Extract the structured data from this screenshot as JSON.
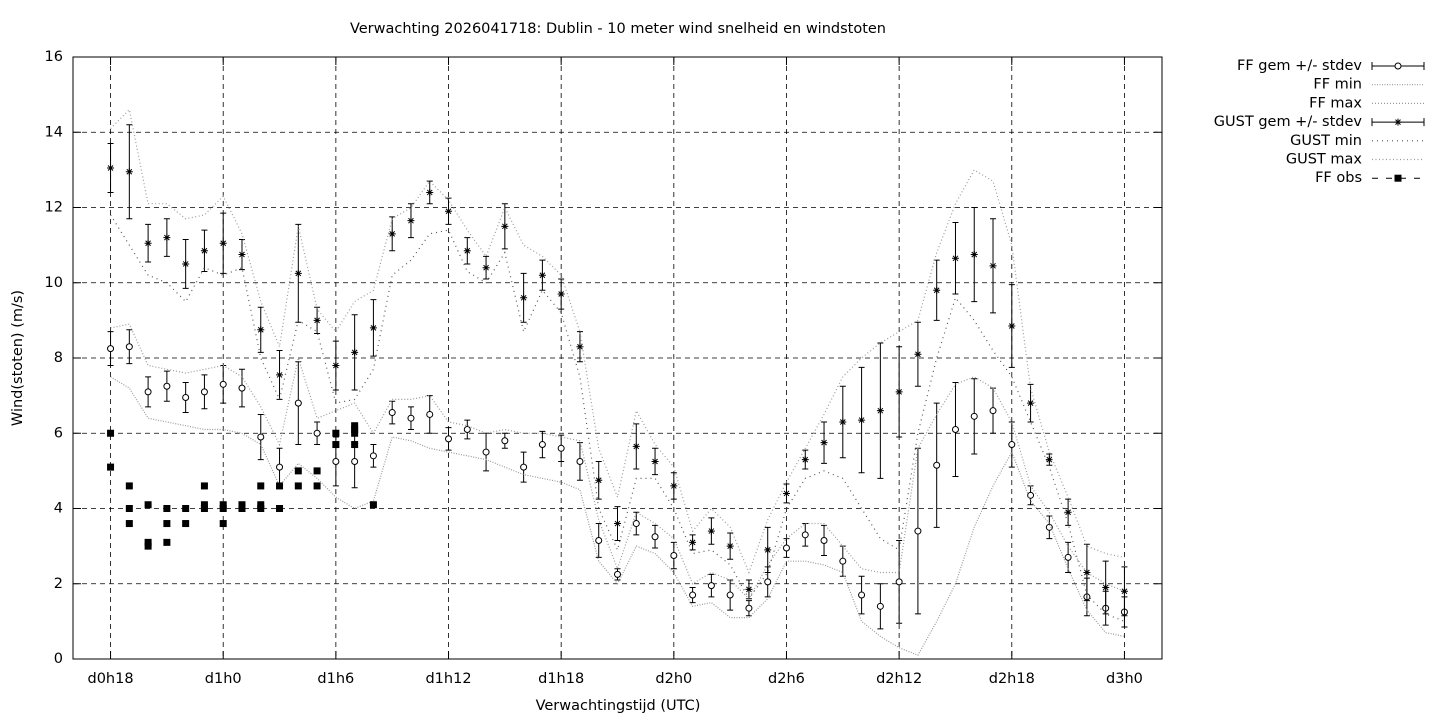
{
  "chart_data": {
    "type": "line",
    "title": "Verwachting 2026041718: Dublin - 10 meter wind snelheid en windstoten",
    "x_label": "Verwachtingstijd (UTC)",
    "y_label": "Wind(stoten) (m/s)",
    "xlim": [
      16,
      74
    ],
    "ylim": [
      0,
      16
    ],
    "xticks": [
      {
        "value": 18,
        "label": "d0h18"
      },
      {
        "value": 24,
        "label": "d1h0"
      },
      {
        "value": 30,
        "label": "d1h6"
      },
      {
        "value": 36,
        "label": "d1h12"
      },
      {
        "value": 42,
        "label": "d1h18"
      },
      {
        "value": 48,
        "label": "d2h0"
      },
      {
        "value": 54,
        "label": "d2h6"
      },
      {
        "value": 60,
        "label": "d2h12"
      },
      {
        "value": 66,
        "label": "d2h18"
      },
      {
        "value": 72,
        "label": "d3h0"
      }
    ],
    "yticks": [
      0,
      2,
      4,
      6,
      8,
      10,
      12,
      14,
      16
    ],
    "grid": true,
    "legend": "outside-top-right",
    "x": [
      18,
      19,
      20,
      21,
      22,
      23,
      24,
      25,
      26,
      27,
      28,
      29,
      30,
      31,
      32,
      33,
      34,
      35,
      36,
      37,
      38,
      39,
      40,
      41,
      42,
      43,
      44,
      45,
      46,
      47,
      48,
      49,
      50,
      51,
      52,
      53,
      54,
      55,
      56,
      57,
      58,
      59,
      60,
      61,
      62,
      63,
      64,
      65,
      66,
      67,
      68,
      69,
      70,
      71,
      72
    ],
    "series": [
      {
        "name": "FF gem +/- stdev",
        "color": "#000000",
        "style": "errorbars",
        "marker": "circle",
        "values": [
          8.25,
          8.3,
          7.1,
          7.25,
          6.95,
          7.1,
          7.3,
          7.2,
          5.9,
          5.1,
          6.8,
          6.0,
          5.25,
          5.25,
          5.4,
          6.55,
          6.4,
          6.5,
          5.85,
          6.1,
          5.5,
          5.8,
          5.1,
          5.7,
          5.6,
          5.25,
          3.15,
          2.25,
          3.6,
          3.25,
          2.75,
          1.7,
          1.95,
          1.7,
          1.35,
          2.05,
          2.95,
          3.3,
          3.15,
          2.6,
          1.7,
          1.4,
          2.05,
          3.4,
          5.15,
          6.1,
          6.45,
          6.6,
          5.7,
          4.35,
          3.5,
          2.7,
          1.65,
          1.35,
          1.25
        ],
        "errors": [
          0.45,
          0.45,
          0.4,
          0.4,
          0.4,
          0.45,
          0.5,
          0.5,
          0.6,
          0.5,
          1.1,
          0.3,
          0.65,
          0.7,
          0.3,
          0.3,
          0.3,
          0.5,
          0.3,
          0.25,
          0.5,
          0.2,
          0.4,
          0.35,
          0.35,
          0.5,
          0.45,
          0.15,
          0.3,
          0.3,
          0.35,
          0.2,
          0.3,
          0.4,
          0.2,
          0.4,
          0.25,
          0.3,
          0.4,
          0.4,
          0.5,
          0.6,
          1.1,
          2.2,
          1.65,
          1.25,
          1.0,
          0.6,
          0.6,
          0.25,
          0.3,
          0.4,
          0.5,
          0.45,
          0.4
        ]
      },
      {
        "name": "FF min",
        "color": "#9a9a9a",
        "style": "line",
        "dash": "1 1.5",
        "values": [
          7.5,
          7.2,
          6.4,
          6.3,
          6.2,
          6.1,
          6.1,
          6.0,
          5.7,
          4.6,
          5.2,
          4.8,
          4.3,
          4.0,
          4.2,
          5.9,
          5.8,
          5.6,
          5.5,
          5.4,
          5.3,
          5.1,
          4.9,
          4.8,
          4.7,
          4.5,
          2.6,
          2.0,
          3.0,
          2.8,
          2.3,
          1.4,
          1.5,
          1.1,
          1.1,
          1.6,
          2.6,
          2.6,
          2.5,
          2.3,
          1.0,
          0.6,
          0.3,
          0.1,
          1.0,
          2.0,
          3.5,
          4.6,
          5.5,
          4.2,
          3.6,
          2.4,
          1.3,
          0.7,
          0.6
        ]
      },
      {
        "name": "FF max",
        "color": "#9a9a9a",
        "style": "line",
        "dash": "1 2",
        "values": [
          8.8,
          8.9,
          7.8,
          7.7,
          7.6,
          7.7,
          7.8,
          7.5,
          6.7,
          5.7,
          8.0,
          6.4,
          6.6,
          6.8,
          6.0,
          6.9,
          6.9,
          7.0,
          6.3,
          6.2,
          6.0,
          6.1,
          6.0,
          6.0,
          5.9,
          5.8,
          3.7,
          2.4,
          3.9,
          3.6,
          3.2,
          2.0,
          2.3,
          2.1,
          1.6,
          2.5,
          3.2,
          3.6,
          3.6,
          3.0,
          2.4,
          2.3,
          2.3,
          5.6,
          6.5,
          7.3,
          7.5,
          7.2,
          6.3,
          4.6,
          3.9,
          3.0,
          2.3,
          2.0,
          1.8
        ]
      },
      {
        "name": "GUST gem +/- stdev",
        "color": "#000000",
        "style": "errorbars",
        "marker": "star",
        "values": [
          13.05,
          12.95,
          11.05,
          11.2,
          10.5,
          10.85,
          11.05,
          10.75,
          8.75,
          7.55,
          10.25,
          9.0,
          7.8,
          8.15,
          8.8,
          11.3,
          11.65,
          12.4,
          11.9,
          10.85,
          10.4,
          11.5,
          9.6,
          10.2,
          9.7,
          8.3,
          4.75,
          3.6,
          5.65,
          5.25,
          4.6,
          3.1,
          3.4,
          3.0,
          1.85,
          2.9,
          4.4,
          5.3,
          5.75,
          6.3,
          6.35,
          6.6,
          7.1,
          8.1,
          9.8,
          10.65,
          10.75,
          10.45,
          8.85,
          6.8,
          5.3,
          3.9,
          2.3,
          1.9,
          1.8
        ],
        "errors": [
          0.65,
          1.25,
          0.5,
          0.5,
          0.65,
          0.55,
          0.8,
          0.4,
          0.6,
          0.65,
          1.3,
          0.35,
          0.65,
          1.0,
          0.75,
          0.45,
          0.45,
          0.3,
          0.35,
          0.35,
          0.3,
          0.6,
          0.65,
          0.4,
          0.4,
          0.4,
          0.5,
          0.45,
          0.6,
          0.35,
          0.35,
          0.2,
          0.35,
          0.35,
          0.25,
          0.6,
          0.25,
          0.25,
          0.55,
          0.95,
          1.4,
          1.8,
          1.2,
          0.85,
          0.8,
          0.95,
          1.25,
          1.25,
          1.1,
          0.5,
          0.15,
          0.35,
          0.75,
          0.7,
          0.65
        ]
      },
      {
        "name": "GUST min",
        "color": "#555555",
        "style": "line",
        "dash": "1 4",
        "values": [
          11.8,
          11.0,
          10.2,
          10.0,
          9.5,
          10.4,
          10.2,
          10.4,
          8.0,
          6.9,
          9.0,
          8.7,
          6.8,
          6.9,
          7.7,
          10.2,
          10.6,
          11.3,
          11.4,
          10.3,
          10.0,
          10.8,
          8.7,
          9.8,
          9.2,
          7.5,
          4.0,
          2.9,
          4.8,
          4.8,
          4.0,
          2.8,
          2.9,
          2.5,
          1.6,
          2.3,
          4.0,
          4.8,
          5.0,
          4.8,
          4.0,
          3.2,
          2.9,
          6.0,
          8.0,
          9.6,
          9.0,
          8.2,
          7.5,
          6.3,
          5.1,
          3.6,
          1.7,
          1.2,
          1.0
        ]
      },
      {
        "name": "GUST max",
        "color": "#9a9a9a",
        "style": "line",
        "dash": "1 2.5",
        "values": [
          14.1,
          14.6,
          12.1,
          12.1,
          11.7,
          11.8,
          12.3,
          11.3,
          9.5,
          8.3,
          11.5,
          9.3,
          8.7,
          9.5,
          9.8,
          11.7,
          12.0,
          12.7,
          12.2,
          11.4,
          10.7,
          12.0,
          11.0,
          10.7,
          10.2,
          8.7,
          5.6,
          4.3,
          6.6,
          5.7,
          5.1,
          3.4,
          4.0,
          3.5,
          2.3,
          3.7,
          4.7,
          5.6,
          6.5,
          7.5,
          8.0,
          8.4,
          8.7,
          9.0,
          10.8,
          12.1,
          13.0,
          12.7,
          11.0,
          7.2,
          5.5,
          4.3,
          3.0,
          2.8,
          2.7
        ]
      },
      {
        "name": "FF obs",
        "color": "#000000",
        "style": "points",
        "marker": "square",
        "x": [
          18,
          18,
          19,
          19,
          19,
          20,
          20,
          20,
          21,
          21,
          21,
          22,
          22,
          23,
          23,
          23,
          24,
          24,
          24,
          25,
          25,
          26,
          26,
          26,
          27,
          27,
          28,
          28,
          29,
          29,
          30,
          30,
          31,
          31,
          31,
          31,
          32
        ],
        "values": [
          6.0,
          5.1,
          4.6,
          4.0,
          3.6,
          4.1,
          3.1,
          3.0,
          4.0,
          3.6,
          3.1,
          4.0,
          3.6,
          4.6,
          4.1,
          4.0,
          4.1,
          4.0,
          3.6,
          4.1,
          4.0,
          4.6,
          4.1,
          4.0,
          4.6,
          4.0,
          5.0,
          4.6,
          5.0,
          4.6,
          6.0,
          5.7,
          6.2,
          6.1,
          6.0,
          5.7,
          4.1
        ]
      }
    ]
  }
}
